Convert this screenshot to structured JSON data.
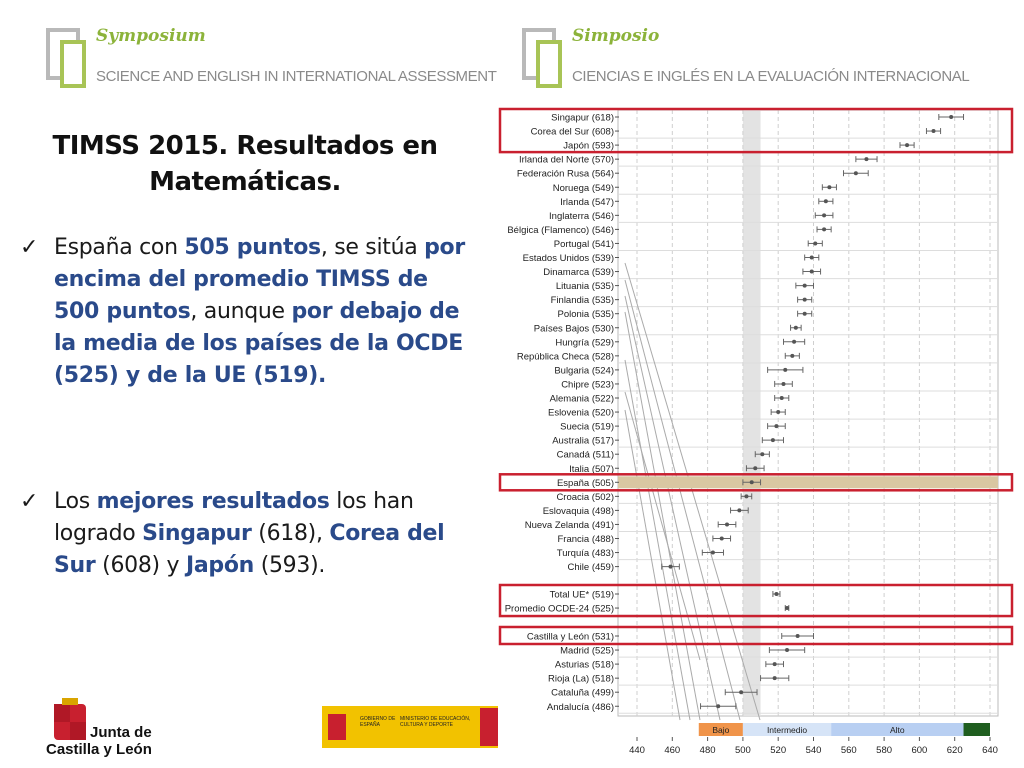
{
  "header_left": {
    "title": "Symposium",
    "subtitle": "SCIENCE AND ENGLISH IN INTERNATIONAL ASSESSMENT"
  },
  "header_right": {
    "title": "Simposio",
    "subtitle": "CIENCIAS E INGLÉS EN LA  EVALUACIÓN INTERNACIONAL"
  },
  "slide_title": "TIMSS 2015. Resultados en Matemáticas.",
  "bullets": [
    {
      "parts": [
        {
          "t": "España con ",
          "hl": false
        },
        {
          "t": "505 puntos",
          "hl": true
        },
        {
          "t": ", se sitúa ",
          "hl": false
        },
        {
          "t": "por encima del promedio TIMSS de 500 puntos",
          "hl": true
        },
        {
          "t": ", aunque ",
          "hl": false
        },
        {
          "t": "por debajo de la media de los países de la OCDE (525) y de la UE (519).",
          "hl": true
        }
      ]
    },
    {
      "parts": [
        {
          "t": "Los ",
          "hl": false
        },
        {
          "t": "mejores resultados",
          "hl": true
        },
        {
          "t": " los han logrado ",
          "hl": false
        },
        {
          "t": "Singapur",
          "hl": true
        },
        {
          "t": " (618), ",
          "hl": false
        },
        {
          "t": "Corea del Sur",
          "hl": true
        },
        {
          "t": " (608) y ",
          "hl": false
        },
        {
          "t": "Japón",
          "hl": true
        },
        {
          "t": " (593).",
          "hl": false
        }
      ]
    }
  ],
  "footer": {
    "junta_line1": "Junta de",
    "junta_line2": "Castilla y León",
    "gobierno": "GOBIERNO DE ESPAÑA",
    "ministerio": "MINISTERIO DE EDUCACIÓN, CULTURA Y DEPORTE"
  },
  "chart_data": {
    "type": "scatter",
    "xlim": [
      440,
      640
    ],
    "xticks": [
      440,
      460,
      480,
      500,
      520,
      540,
      560,
      580,
      600,
      620,
      640
    ],
    "band_labels": [
      {
        "label": "Bajo",
        "from": 475,
        "to": 500,
        "color": "#f0944a"
      },
      {
        "label": "Intermedio",
        "from": 500,
        "to": 550,
        "color": "#d6e4f7"
      },
      {
        "label": "Alto",
        "from": 550,
        "to": 625,
        "color": "#b8cff2"
      },
      {
        "label": "",
        "from": 625,
        "to": 640,
        "color": "#1f5e1f"
      }
    ],
    "groups": [
      {
        "rows": [
          {
            "label": "Singapur (618)",
            "value": 618,
            "err": 7
          },
          {
            "label": "Corea del Sur (608)",
            "value": 608,
            "err": 4
          },
          {
            "label": "Japón (593)",
            "value": 593,
            "err": 4
          },
          {
            "label": "Irlanda del Norte (570)",
            "value": 570,
            "err": 6
          },
          {
            "label": "Federación Rusa (564)",
            "value": 564,
            "err": 7
          },
          {
            "label": "Noruega (549)",
            "value": 549,
            "err": 4
          },
          {
            "label": "Irlanda (547)",
            "value": 547,
            "err": 4
          },
          {
            "label": "Inglaterra (546)",
            "value": 546,
            "err": 5
          },
          {
            "label": "Bélgica (Flamenco) (546)",
            "value": 546,
            "err": 4
          },
          {
            "label": "Portugal (541)",
            "value": 541,
            "err": 4
          },
          {
            "label": "Estados Unidos (539)",
            "value": 539,
            "err": 4
          },
          {
            "label": "Dinamarca (539)",
            "value": 539,
            "err": 5
          },
          {
            "label": "Lituania (535)",
            "value": 535,
            "err": 5
          },
          {
            "label": "Finlandia (535)",
            "value": 535,
            "err": 4
          },
          {
            "label": "Polonia (535)",
            "value": 535,
            "err": 4
          },
          {
            "label": "Países Bajos (530)",
            "value": 530,
            "err": 3
          },
          {
            "label": "Hungría (529)",
            "value": 529,
            "err": 6
          },
          {
            "label": "República Checa (528)",
            "value": 528,
            "err": 4
          },
          {
            "label": "Bulgaria (524)",
            "value": 524,
            "err": 10
          },
          {
            "label": "Chipre (523)",
            "value": 523,
            "err": 5
          },
          {
            "label": "Alemania (522)",
            "value": 522,
            "err": 4
          },
          {
            "label": "Eslovenia (520)",
            "value": 520,
            "err": 4
          },
          {
            "label": "Suecia (519)",
            "value": 519,
            "err": 5
          },
          {
            "label": "Australia (517)",
            "value": 517,
            "err": 6
          },
          {
            "label": "Canadá (511)",
            "value": 511,
            "err": 4
          },
          {
            "label": "Italia (507)",
            "value": 507,
            "err": 5
          },
          {
            "label": "España (505)",
            "value": 505,
            "err": 5
          },
          {
            "label": "Croacia (502)",
            "value": 502,
            "err": 3
          },
          {
            "label": "Eslovaquia (498)",
            "value": 498,
            "err": 5
          },
          {
            "label": "Nueva Zelanda (491)",
            "value": 491,
            "err": 5
          },
          {
            "label": "Francia (488)",
            "value": 488,
            "err": 5
          },
          {
            "label": "Turquía (483)",
            "value": 483,
            "err": 6
          },
          {
            "label": "Chile (459)",
            "value": 459,
            "err": 5
          }
        ]
      },
      {
        "rows": [
          {
            "label": "Total UE* (519)",
            "value": 519,
            "err": 2
          },
          {
            "label": "Promedio OCDE-24 (525)",
            "value": 525,
            "err": 1
          }
        ]
      },
      {
        "rows": [
          {
            "label": "Castilla y León (531)",
            "value": 531,
            "err": 9
          },
          {
            "label": "Madrid (525)",
            "value": 525,
            "err": 10
          },
          {
            "label": "Asturias (518)",
            "value": 518,
            "err": 5
          },
          {
            "label": "Rioja (La) (518)",
            "value": 518,
            "err": 8
          },
          {
            "label": "Cataluña (499)",
            "value": 499,
            "err": 9
          },
          {
            "label": "Andalucía (486)",
            "value": 486,
            "err": 10
          }
        ]
      }
    ],
    "highlights": [
      "Singapur (618)",
      "Corea del Sur (608)",
      "Japón (593)",
      "España (505)",
      "Total UE* (519)",
      "Promedio OCDE-24 (525)",
      "Castilla y León (531)"
    ]
  }
}
